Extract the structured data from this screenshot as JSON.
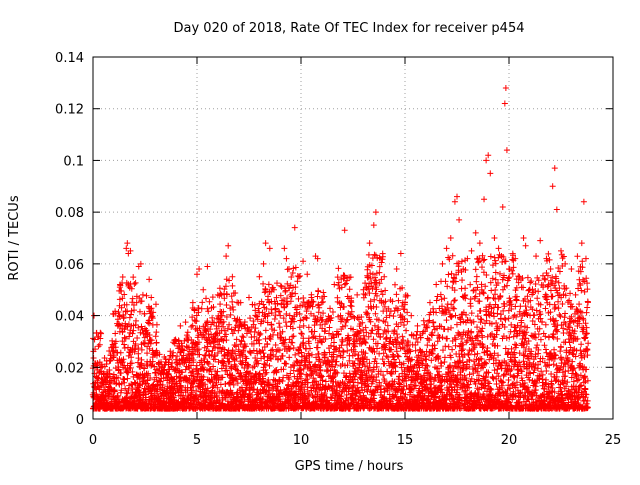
{
  "chart_data": {
    "type": "scatter",
    "title": "Day 020 of 2018, Rate Of TEC Index for receiver p454",
    "xlabel": "GPS time / hours",
    "ylabel": "ROTI / TECUs",
    "xlim": [
      0,
      25
    ],
    "ylim": [
      0,
      0.14
    ],
    "xticks": [
      0,
      5,
      10,
      15,
      20,
      25
    ],
    "xtick_labels": [
      "0",
      "5",
      "10",
      "15",
      "20",
      "25"
    ],
    "yticks": [
      0,
      0.02,
      0.04,
      0.06,
      0.08,
      0.1,
      0.12,
      0.14
    ],
    "ytick_labels": [
      "0",
      "0.02",
      "0.04",
      "0.06",
      "0.08",
      "0.1",
      "0.12",
      "0.14"
    ],
    "grid": true,
    "marker": "plus",
    "color": "#ff0000",
    "series": [
      {
        "name": "ROTI",
        "points": [
          [
            0.05,
            0.04
          ],
          [
            0.1,
            0.027
          ],
          [
            0.2,
            0.019
          ],
          [
            0.3,
            0.012
          ],
          [
            0.4,
            0.021
          ],
          [
            0.5,
            0.009
          ],
          [
            0.6,
            0.015
          ],
          [
            0.8,
            0.011
          ],
          [
            1.0,
            0.024
          ],
          [
            1.1,
            0.03
          ],
          [
            1.2,
            0.036
          ],
          [
            1.3,
            0.052
          ],
          [
            1.4,
            0.022
          ],
          [
            1.5,
            0.014
          ],
          [
            1.6,
            0.066
          ],
          [
            1.65,
            0.068
          ],
          [
            1.7,
            0.064
          ],
          [
            1.8,
            0.065
          ],
          [
            1.9,
            0.033
          ],
          [
            2.0,
            0.026
          ],
          [
            2.1,
            0.045
          ],
          [
            2.2,
            0.059
          ],
          [
            2.3,
            0.06
          ],
          [
            2.4,
            0.048
          ],
          [
            2.5,
            0.035
          ],
          [
            2.6,
            0.028
          ],
          [
            2.7,
            0.054
          ],
          [
            2.8,
            0.047
          ],
          [
            3.0,
            0.018
          ],
          [
            3.2,
            0.025
          ],
          [
            3.5,
            0.016
          ],
          [
            3.8,
            0.02
          ],
          [
            4.0,
            0.03
          ],
          [
            4.2,
            0.036
          ],
          [
            4.5,
            0.028
          ],
          [
            4.8,
            0.045
          ],
          [
            5.0,
            0.056
          ],
          [
            5.1,
            0.058
          ],
          [
            5.3,
            0.05
          ],
          [
            5.5,
            0.059
          ],
          [
            5.7,
            0.043
          ],
          [
            6.0,
            0.048
          ],
          [
            6.2,
            0.04
          ],
          [
            6.4,
            0.063
          ],
          [
            6.5,
            0.067
          ],
          [
            6.7,
            0.055
          ],
          [
            6.9,
            0.038
          ],
          [
            7.1,
            0.045
          ],
          [
            7.3,
            0.029
          ],
          [
            7.5,
            0.047
          ],
          [
            7.8,
            0.042
          ],
          [
            8.0,
            0.055
          ],
          [
            8.2,
            0.06
          ],
          [
            8.3,
            0.068
          ],
          [
            8.5,
            0.066
          ],
          [
            8.7,
            0.05
          ],
          [
            9.0,
            0.04
          ],
          [
            9.2,
            0.066
          ],
          [
            9.3,
            0.062
          ],
          [
            9.5,
            0.048
          ],
          [
            9.7,
            0.074
          ],
          [
            9.9,
            0.055
          ],
          [
            10.1,
            0.061
          ],
          [
            10.3,
            0.056
          ],
          [
            10.5,
            0.047
          ],
          [
            10.7,
            0.063
          ],
          [
            10.8,
            0.062
          ],
          [
            11.0,
            0.045
          ],
          [
            11.3,
            0.038
          ],
          [
            11.6,
            0.052
          ],
          [
            11.9,
            0.04
          ],
          [
            12.1,
            0.073
          ],
          [
            12.4,
            0.035
          ],
          [
            12.7,
            0.048
          ],
          [
            13.0,
            0.05
          ],
          [
            13.3,
            0.068
          ],
          [
            13.5,
            0.075
          ],
          [
            13.6,
            0.08
          ],
          [
            13.8,
            0.062
          ],
          [
            14.0,
            0.055
          ],
          [
            14.3,
            0.046
          ],
          [
            14.6,
            0.058
          ],
          [
            14.8,
            0.064
          ],
          [
            15.0,
            0.045
          ],
          [
            15.3,
            0.04
          ],
          [
            15.6,
            0.036
          ],
          [
            15.9,
            0.038
          ],
          [
            16.2,
            0.045
          ],
          [
            16.5,
            0.052
          ],
          [
            16.8,
            0.06
          ],
          [
            17.0,
            0.066
          ],
          [
            17.2,
            0.07
          ],
          [
            17.4,
            0.084
          ],
          [
            17.5,
            0.086
          ],
          [
            17.6,
            0.077
          ],
          [
            17.8,
            0.058
          ],
          [
            18.0,
            0.062
          ],
          [
            18.2,
            0.065
          ],
          [
            18.4,
            0.072
          ],
          [
            18.6,
            0.068
          ],
          [
            18.8,
            0.085
          ],
          [
            18.9,
            0.1
          ],
          [
            19.0,
            0.102
          ],
          [
            19.1,
            0.095
          ],
          [
            19.3,
            0.07
          ],
          [
            19.5,
            0.066
          ],
          [
            19.7,
            0.082
          ],
          [
            19.8,
            0.122
          ],
          [
            19.85,
            0.128
          ],
          [
            19.9,
            0.104
          ],
          [
            20.0,
            0.058
          ],
          [
            20.3,
            0.062
          ],
          [
            20.5,
            0.055
          ],
          [
            20.7,
            0.07
          ],
          [
            20.8,
            0.067
          ],
          [
            21.0,
            0.05
          ],
          [
            21.3,
            0.063
          ],
          [
            21.5,
            0.069
          ],
          [
            21.8,
            0.062
          ],
          [
            22.0,
            0.058
          ],
          [
            22.1,
            0.09
          ],
          [
            22.2,
            0.097
          ],
          [
            22.3,
            0.081
          ],
          [
            22.5,
            0.065
          ],
          [
            22.7,
            0.06
          ],
          [
            23.0,
            0.058
          ],
          [
            23.2,
            0.048
          ],
          [
            23.5,
            0.068
          ],
          [
            23.6,
            0.084
          ],
          [
            23.7,
            0.062
          ]
        ]
      }
    ]
  }
}
